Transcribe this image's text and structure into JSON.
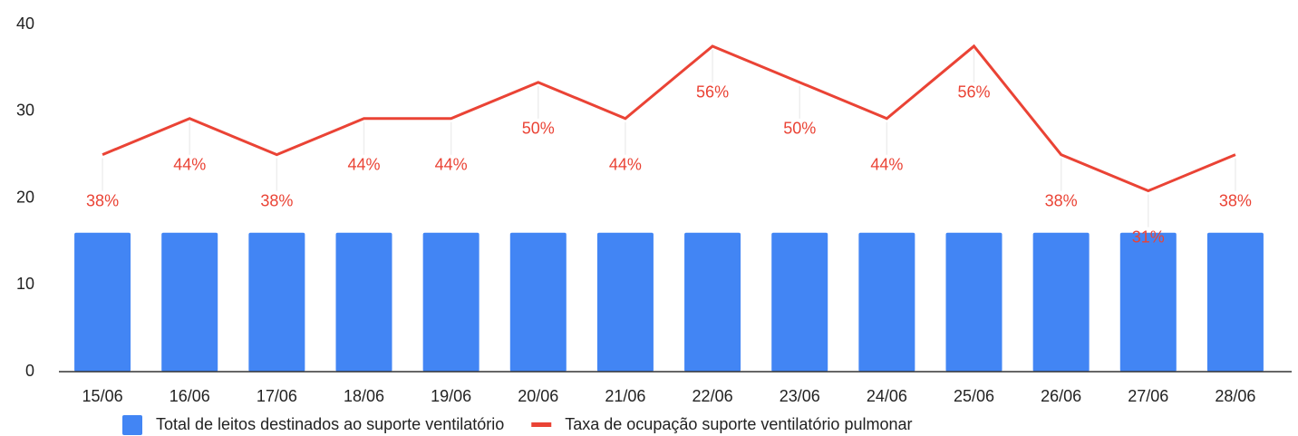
{
  "chart_data": {
    "type": "bar-line",
    "categories": [
      "15/06",
      "16/06",
      "17/06",
      "18/06",
      "19/06",
      "20/06",
      "21/06",
      "22/06",
      "23/06",
      "24/06",
      "25/06",
      "26/06",
      "27/06",
      "28/06"
    ],
    "series": [
      {
        "name": "Total de leitos destinados ao suporte ventilatório",
        "color": "#4285f4",
        "type": "bar",
        "values": [
          16,
          16,
          16,
          16,
          16,
          16,
          16,
          16,
          16,
          16,
          16,
          16,
          16,
          16
        ]
      },
      {
        "name": "Taxa de ocupação suporte ventilatório pulmonar",
        "color": "#ea4335",
        "type": "line",
        "axis": "y2",
        "values": [
          37.5,
          43.75,
          37.5,
          43.75,
          43.75,
          50,
          43.75,
          56.25,
          50,
          43.75,
          56.25,
          37.5,
          31.25,
          37.5
        ],
        "value_labels": [
          "38%",
          "44%",
          "38%",
          "44%",
          "44%",
          "50%",
          "44%",
          "56%",
          "50%",
          "44%",
          "56%",
          "38%",
          "31%",
          "38%"
        ]
      }
    ],
    "ylim": [
      0,
      40
    ],
    "yticks": [
      0,
      10,
      20,
      30,
      40
    ],
    "y2lim": [
      0,
      60
    ],
    "legend": "bottom"
  }
}
